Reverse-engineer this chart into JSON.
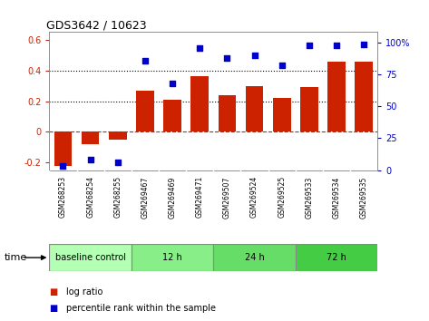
{
  "title": "GDS3642 / 10623",
  "samples": [
    "GSM268253",
    "GSM268254",
    "GSM268255",
    "GSM269467",
    "GSM269469",
    "GSM269471",
    "GSM269507",
    "GSM269524",
    "GSM269525",
    "GSM269533",
    "GSM269534",
    "GSM269535"
  ],
  "log_ratio": [
    -0.22,
    -0.08,
    -0.05,
    0.27,
    0.21,
    0.36,
    0.24,
    0.3,
    0.22,
    0.29,
    0.46,
    0.46
  ],
  "percentile_rank": [
    3,
    8,
    6,
    86,
    68,
    96,
    88,
    90,
    82,
    98,
    98,
    99
  ],
  "bar_color": "#cc2200",
  "dot_color": "#0000cc",
  "ylim_left": [
    -0.25,
    0.65
  ],
  "ylim_right": [
    0,
    108.3333
  ],
  "yticks_left": [
    -0.2,
    0.0,
    0.2,
    0.4,
    0.6
  ],
  "yticks_right": [
    0,
    25,
    50,
    75,
    100
  ],
  "ytick_labels_left": [
    "-0.2",
    "0",
    "0.2",
    "0.4",
    "0.6"
  ],
  "ytick_labels_right": [
    "0",
    "25",
    "50",
    "75",
    "100%"
  ],
  "hlines": [
    0.2,
    0.4
  ],
  "zero_line_color": "#cc2200",
  "hline_color": "black",
  "groups": [
    {
      "label": "baseline control",
      "start": 0,
      "end": 3,
      "color": "#b3ffb3"
    },
    {
      "label": "12 h",
      "start": 3,
      "end": 6,
      "color": "#88ee88"
    },
    {
      "label": "24 h",
      "start": 6,
      "end": 9,
      "color": "#66dd66"
    },
    {
      "label": "72 h",
      "start": 9,
      "end": 12,
      "color": "#44cc44"
    }
  ],
  "time_label": "time",
  "legend_log_ratio": "log ratio",
  "legend_percentile": "percentile rank within the sample",
  "bg_color": "#ffffff",
  "tick_area_bg": "#cccccc",
  "spine_color": "#888888"
}
